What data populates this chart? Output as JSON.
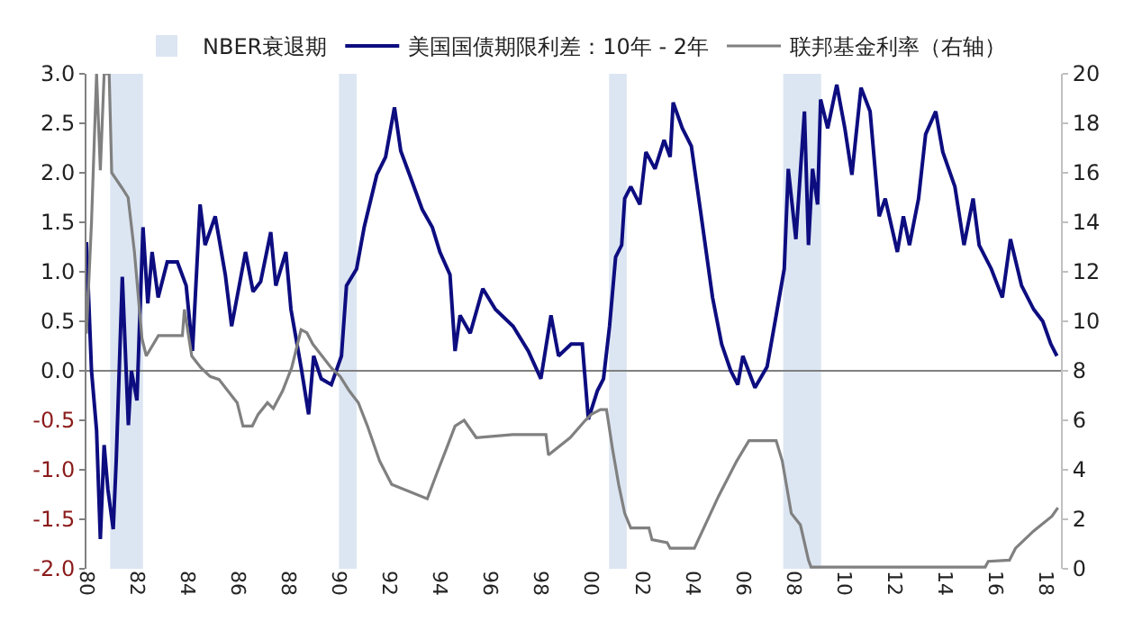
{
  "chart_data": {
    "type": "line",
    "xlim": [
      1980,
      2018.6
    ],
    "xticks": [
      {
        "value": 1980,
        "label": "80"
      },
      {
        "value": 1982,
        "label": "82"
      },
      {
        "value": 1984,
        "label": "84"
      },
      {
        "value": 1986,
        "label": "86"
      },
      {
        "value": 1988,
        "label": "88"
      },
      {
        "value": 1990,
        "label": "90"
      },
      {
        "value": 1992,
        "label": "92"
      },
      {
        "value": 1994,
        "label": "94"
      },
      {
        "value": 1996,
        "label": "96"
      },
      {
        "value": 1998,
        "label": "98"
      },
      {
        "value": 2000,
        "label": "00"
      },
      {
        "value": 2002,
        "label": "02"
      },
      {
        "value": 2004,
        "label": "04"
      },
      {
        "value": 2006,
        "label": "06"
      },
      {
        "value": 2008,
        "label": "08"
      },
      {
        "value": 2010,
        "label": "10"
      },
      {
        "value": 2012,
        "label": "12"
      },
      {
        "value": 2014,
        "label": "14"
      },
      {
        "value": 2016,
        "label": "16"
      },
      {
        "value": 2018,
        "label": "18"
      }
    ],
    "ylim": [
      -2.0,
      3.0
    ],
    "yticks": [
      {
        "value": -2,
        "label": "-2.0"
      },
      {
        "value": -1.5,
        "label": "-1.5"
      },
      {
        "value": -1,
        "label": "-1.0"
      },
      {
        "value": -0.5,
        "label": "-0.5"
      },
      {
        "value": 0,
        "label": "0.0"
      },
      {
        "value": 0.5,
        "label": "0.5"
      },
      {
        "value": 1,
        "label": "1.0"
      },
      {
        "value": 1.5,
        "label": "1.5"
      },
      {
        "value": 2,
        "label": "2.0"
      },
      {
        "value": 2.5,
        "label": "2.5"
      },
      {
        "value": 3,
        "label": "3.0"
      }
    ],
    "y2lim": [
      0,
      20
    ],
    "y2ticks": [
      0,
      2,
      4,
      6,
      8,
      10,
      12,
      14,
      16,
      18,
      20
    ],
    "grid": false,
    "legend": "top",
    "marker": "none",
    "line_style": "solid",
    "bands": [
      {
        "axis": "x",
        "from": 1980.94,
        "to": 1982.24,
        "label": "NBER衰退期",
        "color": "#dce6f2"
      },
      {
        "axis": "x",
        "from": 1990.0,
        "to": 1990.7,
        "color": "#dce6f2"
      },
      {
        "axis": "x",
        "from": 2000.7,
        "to": 2001.4,
        "color": "#dce6f2"
      },
      {
        "axis": "x",
        "from": 2007.6,
        "to": 2009.1,
        "color": "#dce6f2"
      }
    ],
    "ref_lines": [
      {
        "axis": "y",
        "value": 0,
        "color": "#808080"
      }
    ],
    "series": [
      {
        "name": "美国国债期限利差：10年 - 2年",
        "color": "#0d0d80",
        "x": [
          1980.0,
          1980.2,
          1980.4,
          1980.55,
          1980.7,
          1980.85,
          1981.06,
          1981.18,
          1981.42,
          1981.66,
          1981.78,
          1982.0,
          1982.1,
          1982.24,
          1982.43,
          1982.6,
          1982.84,
          1983.2,
          1983.6,
          1983.95,
          1984.2,
          1984.5,
          1984.7,
          1985.1,
          1985.5,
          1985.75,
          1986.3,
          1986.6,
          1986.9,
          1987.3,
          1987.5,
          1987.9,
          1988.1,
          1988.5,
          1988.8,
          1989.0,
          1989.3,
          1989.7,
          1990.1,
          1990.3,
          1990.7,
          1991.0,
          1991.5,
          1991.85,
          1992.2,
          1992.45,
          1992.8,
          1993.3,
          1993.7,
          1994.0,
          1994.4,
          1994.6,
          1994.8,
          1995.2,
          1995.7,
          1996.2,
          1996.9,
          1997.5,
          1998.0,
          1998.4,
          1998.7,
          1999.2,
          1999.64,
          1999.88,
          2000.24,
          2000.48,
          2000.72,
          2000.96,
          2001.2,
          2001.32,
          2001.56,
          2001.92,
          2002.16,
          2002.52,
          2002.88,
          2003.12,
          2003.24,
          2003.6,
          2003.96,
          2004.32,
          2004.8,
          2005.16,
          2005.52,
          2005.8,
          2006.0,
          2006.48,
          2006.96,
          2007.32,
          2007.64,
          2007.8,
          2008.1,
          2008.44,
          2008.6,
          2008.76,
          2008.96,
          2009.08,
          2009.36,
          2009.72,
          2010.04,
          2010.32,
          2010.68,
          2011.04,
          2011.4,
          2011.64,
          2012.12,
          2012.36,
          2012.6,
          2012.96,
          2013.24,
          2013.64,
          2013.92,
          2014.4,
          2014.76,
          2015.12,
          2015.36,
          2015.84,
          2016.28,
          2016.6,
          2017.04,
          2017.52,
          2017.88,
          2018.2,
          2018.44
        ],
        "values": [
          1.3,
          0.0,
          -0.6,
          -1.7,
          -0.75,
          -1.2,
          -1.6,
          -0.9,
          0.95,
          -0.55,
          0.0,
          -0.3,
          0.45,
          1.45,
          0.68,
          1.2,
          0.74,
          1.1,
          1.1,
          0.86,
          0.2,
          1.68,
          1.27,
          1.56,
          0.97,
          0.45,
          1.2,
          0.8,
          0.9,
          1.4,
          0.86,
          1.2,
          0.62,
          0.04,
          -0.44,
          0.15,
          -0.08,
          -0.14,
          0.15,
          0.86,
          1.03,
          1.45,
          1.98,
          2.16,
          2.66,
          2.22,
          1.98,
          1.63,
          1.45,
          1.2,
          0.97,
          0.2,
          0.56,
          0.38,
          0.83,
          0.62,
          0.45,
          0.2,
          -0.08,
          0.56,
          0.15,
          0.27,
          0.27,
          -0.49,
          -0.2,
          -0.08,
          0.45,
          1.15,
          1.27,
          1.74,
          1.86,
          1.68,
          2.21,
          2.04,
          2.33,
          2.16,
          2.71,
          2.45,
          2.27,
          1.62,
          0.74,
          0.27,
          0.0,
          -0.14,
          0.15,
          -0.17,
          0.04,
          0.56,
          1.03,
          2.04,
          1.33,
          2.62,
          1.27,
          2.04,
          1.68,
          2.74,
          2.45,
          2.89,
          2.45,
          1.98,
          2.86,
          2.62,
          1.56,
          1.74,
          1.2,
          1.56,
          1.27,
          1.74,
          2.39,
          2.62,
          2.21,
          1.86,
          1.27,
          1.74,
          1.27,
          1.03,
          0.74,
          1.33,
          0.86,
          0.62,
          0.5,
          0.27,
          0.15
        ]
      },
      {
        "name": "联邦基金利率（右轴）",
        "color": "#808080",
        "axis": "y2",
        "x": [
          1980.0,
          1980.2,
          1980.4,
          1980.55,
          1980.7,
          1980.9,
          1981.0,
          1981.4,
          1981.65,
          1981.9,
          1982.2,
          1982.37,
          1982.85,
          1983.8,
          1983.88,
          1984.17,
          1984.53,
          1984.9,
          1985.25,
          1985.6,
          1985.97,
          1986.2,
          1986.57,
          1986.8,
          1987.17,
          1987.4,
          1987.77,
          1988.13,
          1988.5,
          1988.73,
          1988.97,
          1989.33,
          1989.69,
          1990.05,
          1990.41,
          1990.77,
          1991.13,
          1991.61,
          1992.09,
          1993.5,
          1993.89,
          1994.25,
          1994.6,
          1994.96,
          1995.44,
          1996.88,
          1998.2,
          1998.3,
          1999.16,
          1999.76,
          2000.0,
          2000.36,
          2000.6,
          2000.84,
          2001.08,
          2001.32,
          2001.56,
          2002.28,
          2002.4,
          2003.0,
          2003.12,
          2004.08,
          2005.04,
          2005.76,
          2006.24,
          2007.32,
          2007.56,
          2007.92,
          2008.28,
          2008.6,
          2008.7,
          2015.6,
          2015.72,
          2016.56,
          2016.8,
          2017.52,
          2018.24,
          2018.48
        ],
        "values": [
          9.5,
          14.0,
          20,
          16.1,
          20,
          20,
          16.0,
          15.4,
          15.0,
          12.8,
          9.3,
          8.6,
          9.42,
          9.42,
          10.48,
          8.6,
          8.13,
          7.77,
          7.65,
          7.19,
          6.71,
          5.77,
          5.77,
          6.24,
          6.71,
          6.48,
          7.19,
          8.13,
          9.66,
          9.54,
          9.07,
          8.6,
          8.13,
          7.77,
          7.19,
          6.71,
          5.77,
          4.36,
          3.41,
          2.83,
          3.89,
          4.83,
          5.77,
          6.0,
          5.3,
          5.42,
          5.42,
          4.6,
          5.3,
          6.0,
          6.24,
          6.43,
          6.43,
          4.83,
          3.41,
          2.24,
          1.65,
          1.65,
          1.18,
          1.06,
          0.83,
          0.83,
          2.94,
          4.36,
          5.18,
          5.18,
          4.36,
          2.24,
          1.77,
          0.35,
          0.07,
          0.07,
          0.3,
          0.35,
          0.83,
          1.53,
          2.12,
          2.47
        ]
      }
    ]
  }
}
